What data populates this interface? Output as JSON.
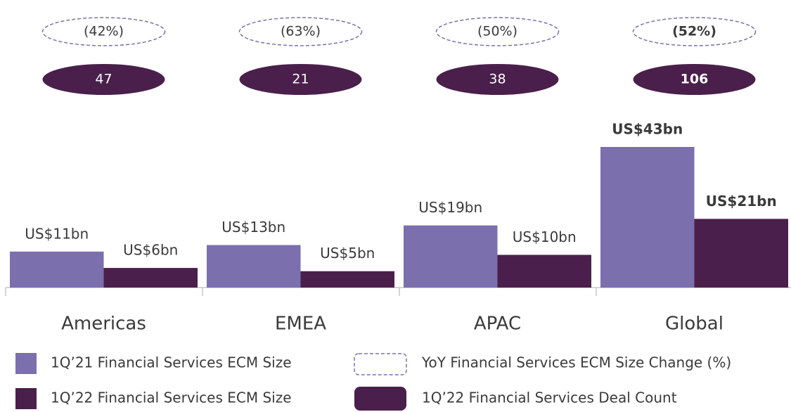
{
  "chart_data": {
    "type": "bar",
    "categories": [
      "Americas",
      "EMEA",
      "APAC",
      "Global"
    ],
    "highlight_index": 3,
    "series": [
      {
        "name": "1Q’21 Financial Services ECM Size",
        "color": "#7b6fae",
        "values": [
          11,
          13,
          19,
          43
        ],
        "value_labels": [
          "US$11bn",
          "US$13bn",
          "US$19bn",
          "US$43bn"
        ]
      },
      {
        "name": "1Q’22 Financial Services ECM Size",
        "color": "#4a1f4b",
        "values": [
          6,
          5,
          10,
          21
        ],
        "value_labels": [
          "US$6bn",
          "US$5bn",
          "US$10bn",
          "US$21bn"
        ]
      }
    ],
    "yoy_change": {
      "name": "YoY Financial Services ECM Size Change (%)",
      "color": "#7b6fae",
      "values": [
        -42,
        -63,
        -50,
        -52
      ],
      "value_labels": [
        "(42%)",
        "(63%)",
        "(50%)",
        "(52%)"
      ]
    },
    "deal_count": {
      "name": "1Q’22 Financial Services Deal Count",
      "color": "#4a1f4b",
      "values": [
        47,
        21,
        38,
        106
      ]
    }
  }
}
